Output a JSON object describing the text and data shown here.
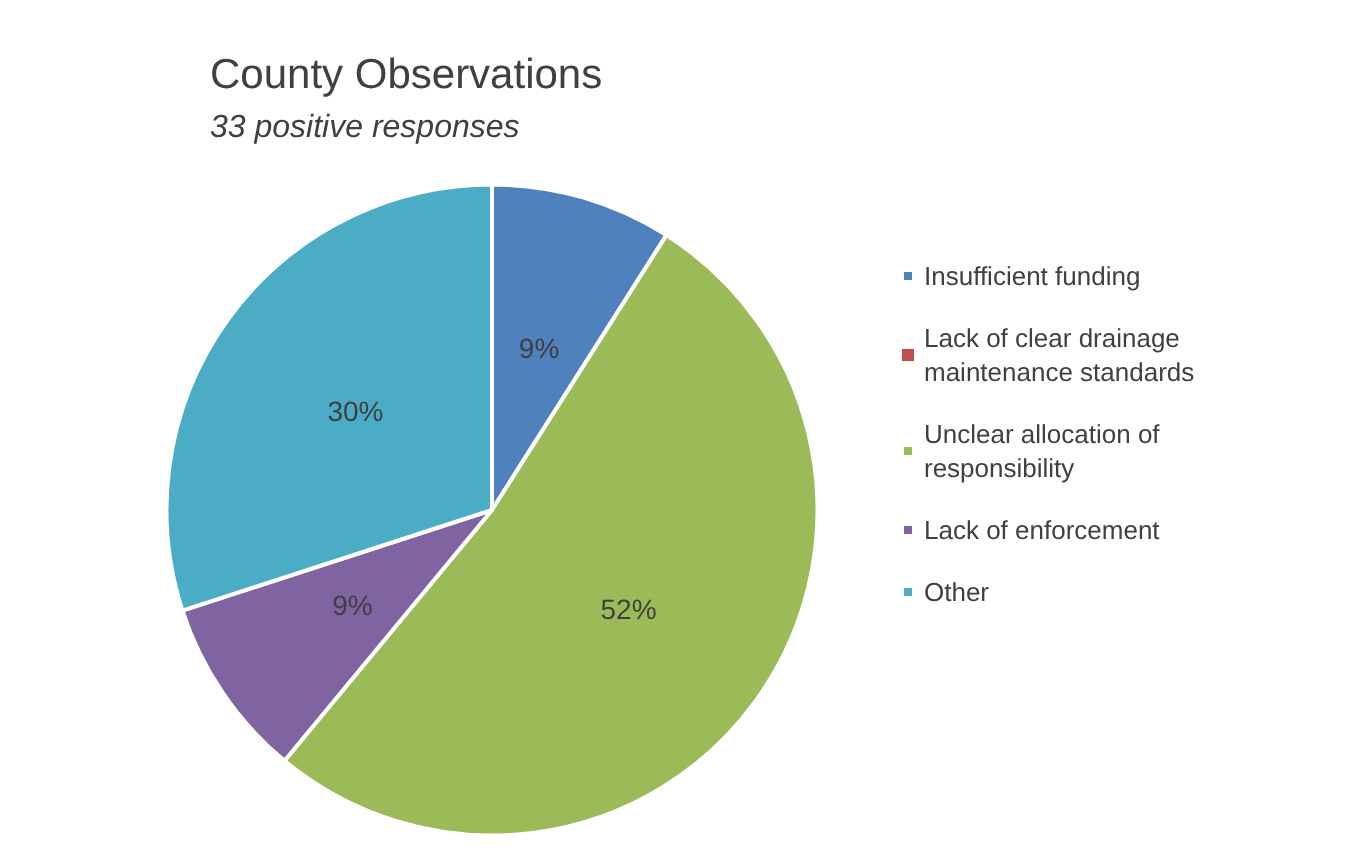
{
  "chart_data": {
    "type": "pie",
    "title": "County Observations",
    "subtitle": "33 positive responses",
    "categories": [
      "Insufficient funding",
      "Lack of clear drainage maintenance standards",
      "Unclear allocation of responsibility",
      "Lack of enforcement",
      "Other"
    ],
    "values": [
      9,
      0,
      52,
      9,
      30
    ],
    "colors": [
      "#4f81bd",
      "#c0504d",
      "#9bbb59",
      "#8064a2",
      "#4bacc6"
    ],
    "value_labels": [
      "9%",
      null,
      "52%",
      "9%",
      "30%"
    ],
    "legend": "right"
  }
}
